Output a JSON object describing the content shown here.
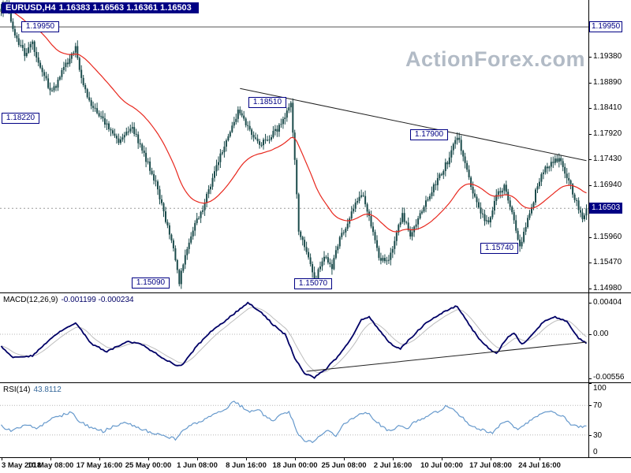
{
  "header": {
    "symbol": "EURUSD,H4",
    "ohlc": "1.16383 1.16563 1.16361 1.16503"
  },
  "watermark": "ActionForex.com",
  "colors": {
    "navy": "#000084",
    "candle": "#1b4b4b",
    "ma": "#e8281e",
    "macd": "#000066",
    "signal": "#bdbdbd",
    "rsi": "#6699cc",
    "watermark": "#b2bbc6",
    "trendline": "#222222",
    "level_line": "#555555",
    "current_line": "#9a9a9a",
    "dotted_grid": "#b5b5b5"
  },
  "chart_data": [
    {
      "type": "candlestick",
      "title": "EURUSD,H4",
      "open": 1.16383,
      "high": 1.16563,
      "low": 1.16361,
      "close": 1.16503,
      "bars": 300,
      "ylim": [
        1.14905,
        1.20461
      ],
      "ma_period": 40,
      "y_ticks": [
        {
          "label": "1.19380",
          "price": 1.1938
        },
        {
          "label": "1.18890",
          "price": 1.1889
        },
        {
          "label": "1.18410",
          "price": 1.1841
        },
        {
          "label": "1.17920",
          "price": 1.1792
        },
        {
          "label": "1.17430",
          "price": 1.1743
        },
        {
          "label": "1.16940",
          "price": 1.1694
        },
        {
          "label": "1.15960",
          "price": 1.1596
        },
        {
          "label": "1.15470",
          "price": 1.1547
        },
        {
          "label": "1.14980",
          "price": 1.1498
        }
      ],
      "marked_levels": [
        {
          "label": "1.19950",
          "price": 1.1995,
          "x_center": 52,
          "full_line": true,
          "right_box": true
        },
        {
          "label": "1.18220",
          "price": 1.1822,
          "x_center": 27
        },
        {
          "label": "1.18510",
          "price": 1.1851,
          "x_center": 340
        },
        {
          "label": "1.17900",
          "price": 1.179,
          "x_center": 545
        },
        {
          "label": "1.15740",
          "price": 1.1574,
          "x_center": 634
        },
        {
          "label": "1.15090",
          "price": 1.1509,
          "x_center": 192
        },
        {
          "label": "1.15070",
          "price": 1.1507,
          "x_center": 398
        }
      ],
      "current_price": {
        "label": "1.16503",
        "price": 1.16503
      },
      "trendline": {
        "from": [
          122,
          1.1878
        ],
        "to": [
          299,
          1.1741
        ]
      },
      "close_keyframes": [
        [
          0,
          1.2028
        ],
        [
          3,
          1.2038
        ],
        [
          7,
          1.198
        ],
        [
          12,
          1.1945
        ],
        [
          16,
          1.1966
        ],
        [
          20,
          1.1915
        ],
        [
          26,
          1.187
        ],
        [
          32,
          1.1915
        ],
        [
          38,
          1.1958
        ],
        [
          42,
          1.188
        ],
        [
          48,
          1.1836
        ],
        [
          54,
          1.181
        ],
        [
          60,
          1.178
        ],
        [
          67,
          1.1802
        ],
        [
          73,
          1.1752
        ],
        [
          79,
          1.17
        ],
        [
          83,
          1.1642
        ],
        [
          87,
          1.1592
        ],
        [
          91,
          1.1512
        ],
        [
          95,
          1.157
        ],
        [
          99,
          1.1618
        ],
        [
          103,
          1.1652
        ],
        [
          109,
          1.172
        ],
        [
          115,
          1.178
        ],
        [
          121,
          1.1832
        ],
        [
          127,
          1.18
        ],
        [
          133,
          1.1772
        ],
        [
          139,
          1.1792
        ],
        [
          145,
          1.1822
        ],
        [
          148,
          1.1851
        ],
        [
          150,
          1.1748
        ],
        [
          152,
          1.1602
        ],
        [
          156,
          1.1572
        ],
        [
          160,
          1.151
        ],
        [
          165,
          1.156
        ],
        [
          169,
          1.154
        ],
        [
          173,
          1.159
        ],
        [
          177,
          1.1622
        ],
        [
          181,
          1.166
        ],
        [
          185,
          1.1676
        ],
        [
          189,
          1.162
        ],
        [
          193,
          1.156
        ],
        [
          197,
          1.1546
        ],
        [
          201,
          1.159
        ],
        [
          205,
          1.164
        ],
        [
          209,
          1.16
        ],
        [
          213,
          1.163
        ],
        [
          217,
          1.1662
        ],
        [
          221,
          1.169
        ],
        [
          225,
          1.172
        ],
        [
          229,
          1.1746
        ],
        [
          233,
          1.179
        ],
        [
          237,
          1.174
        ],
        [
          241,
          1.168
        ],
        [
          245,
          1.164
        ],
        [
          249,
          1.162
        ],
        [
          253,
          1.168
        ],
        [
          257,
          1.169
        ],
        [
          261,
          1.164
        ],
        [
          265,
          1.1578
        ],
        [
          269,
          1.163
        ],
        [
          273,
          1.168
        ],
        [
          277,
          1.172
        ],
        [
          281,
          1.174
        ],
        [
          285,
          1.1746
        ],
        [
          289,
          1.171
        ],
        [
          293,
          1.1672
        ],
        [
          297,
          1.1632
        ],
        [
          299,
          1.16503
        ]
      ],
      "x_labels": [
        "3 May 2018",
        "10 May 08:00",
        "17 May 16:00",
        "25 May 00:00",
        "1 Jun 08:00",
        "8 Jun 16:00",
        "18 Jun 00:00",
        "25 Jun 08:00",
        "2 Jul 16:00",
        "10 Jul 00:00",
        "17 Jul 08:00",
        "24 Jul 16:00"
      ]
    },
    {
      "type": "line",
      "name": "MACD",
      "label": "MACD(12,26,9)",
      "values_text": "-0.001199 -0.000234",
      "ylim": [
        -0.0061,
        0.0052
      ],
      "signal_period": 9,
      "y_ticks": [
        {
          "label": "0.00404",
          "value": 0.00404
        },
        {
          "label": "0.00",
          "value": 0
        },
        {
          "label": "-0.00556",
          "value": -0.00556
        }
      ],
      "trendline": {
        "from": [
          156,
          -0.0047
        ],
        "to": [
          299,
          -0.001
        ]
      },
      "keyframes": [
        [
          0,
          -0.0015
        ],
        [
          6,
          -0.003
        ],
        [
          16,
          -0.0027
        ],
        [
          28,
          0.0
        ],
        [
          38,
          0.0015
        ],
        [
          46,
          -0.0012
        ],
        [
          54,
          -0.0022
        ],
        [
          64,
          -0.0009
        ],
        [
          72,
          -0.0013
        ],
        [
          80,
          -0.0026
        ],
        [
          88,
          -0.0038
        ],
        [
          92,
          -0.004
        ],
        [
          100,
          -0.0015
        ],
        [
          108,
          0.0005
        ],
        [
          116,
          0.002
        ],
        [
          122,
          0.0032
        ],
        [
          126,
          0.004
        ],
        [
          133,
          0.0028
        ],
        [
          139,
          0.0012
        ],
        [
          145,
          0.0
        ],
        [
          150,
          -0.003
        ],
        [
          155,
          -0.005
        ],
        [
          160,
          -0.0055
        ],
        [
          166,
          -0.0044
        ],
        [
          172,
          -0.0028
        ],
        [
          178,
          -0.0008
        ],
        [
          184,
          0.0018
        ],
        [
          188,
          0.0022
        ],
        [
          194,
          0.0003
        ],
        [
          200,
          -0.0015
        ],
        [
          204,
          -0.0018
        ],
        [
          210,
          -0.0003
        ],
        [
          216,
          0.0012
        ],
        [
          222,
          0.0022
        ],
        [
          229,
          0.0032
        ],
        [
          233,
          0.0036
        ],
        [
          239,
          0.0012
        ],
        [
          245,
          -0.0008
        ],
        [
          250,
          -0.002
        ],
        [
          253,
          -0.0025
        ],
        [
          258,
          -0.0006
        ],
        [
          262,
          0.0002
        ],
        [
          266,
          -0.0013
        ],
        [
          270,
          -0.0004
        ],
        [
          277,
          0.0016
        ],
        [
          283,
          0.0022
        ],
        [
          289,
          0.0016
        ],
        [
          295,
          -0.0005
        ],
        [
          299,
          -0.0012
        ]
      ]
    },
    {
      "type": "line",
      "name": "RSI",
      "label": "RSI(14)",
      "value_text": "43.8112",
      "ylim": [
        0,
        100
      ],
      "levels": [
        70,
        30
      ],
      "y_ticks": [
        {
          "label": "100",
          "value": 100
        },
        {
          "label": "70",
          "value": 70
        },
        {
          "label": "30",
          "value": 30
        },
        {
          "label": "0",
          "value": 0
        }
      ],
      "keyframes": [
        [
          0,
          42
        ],
        [
          6,
          35
        ],
        [
          12,
          45
        ],
        [
          18,
          38
        ],
        [
          24,
          50
        ],
        [
          30,
          55
        ],
        [
          36,
          62
        ],
        [
          40,
          48
        ],
        [
          46,
          40
        ],
        [
          52,
          35
        ],
        [
          58,
          42
        ],
        [
          64,
          48
        ],
        [
          70,
          40
        ],
        [
          77,
          33
        ],
        [
          83,
          28
        ],
        [
          89,
          25
        ],
        [
          95,
          40
        ],
        [
          101,
          48
        ],
        [
          107,
          55
        ],
        [
          113,
          62
        ],
        [
          119,
          75
        ],
        [
          123,
          68
        ],
        [
          127,
          60
        ],
        [
          131,
          65
        ],
        [
          135,
          55
        ],
        [
          139,
          50
        ],
        [
          143,
          58
        ],
        [
          147,
          62
        ],
        [
          151,
          35
        ],
        [
          155,
          22
        ],
        [
          159,
          20
        ],
        [
          163,
          30
        ],
        [
          167,
          35
        ],
        [
          171,
          30
        ],
        [
          175,
          45
        ],
        [
          181,
          55
        ],
        [
          187,
          60
        ],
        [
          191,
          50
        ],
        [
          195,
          40
        ],
        [
          199,
          35
        ],
        [
          203,
          42
        ],
        [
          207,
          38
        ],
        [
          211,
          48
        ],
        [
          215,
          52
        ],
        [
          219,
          58
        ],
        [
          223,
          62
        ],
        [
          227,
          68
        ],
        [
          231,
          65
        ],
        [
          235,
          55
        ],
        [
          239,
          45
        ],
        [
          243,
          40
        ],
        [
          247,
          35
        ],
        [
          251,
          32
        ],
        [
          255,
          45
        ],
        [
          259,
          50
        ],
        [
          263,
          38
        ],
        [
          267,
          42
        ],
        [
          271,
          52
        ],
        [
          275,
          58
        ],
        [
          279,
          62
        ],
        [
          283,
          60
        ],
        [
          287,
          55
        ],
        [
          291,
          45
        ],
        [
          295,
          40
        ],
        [
          299,
          43.8
        ]
      ]
    }
  ]
}
